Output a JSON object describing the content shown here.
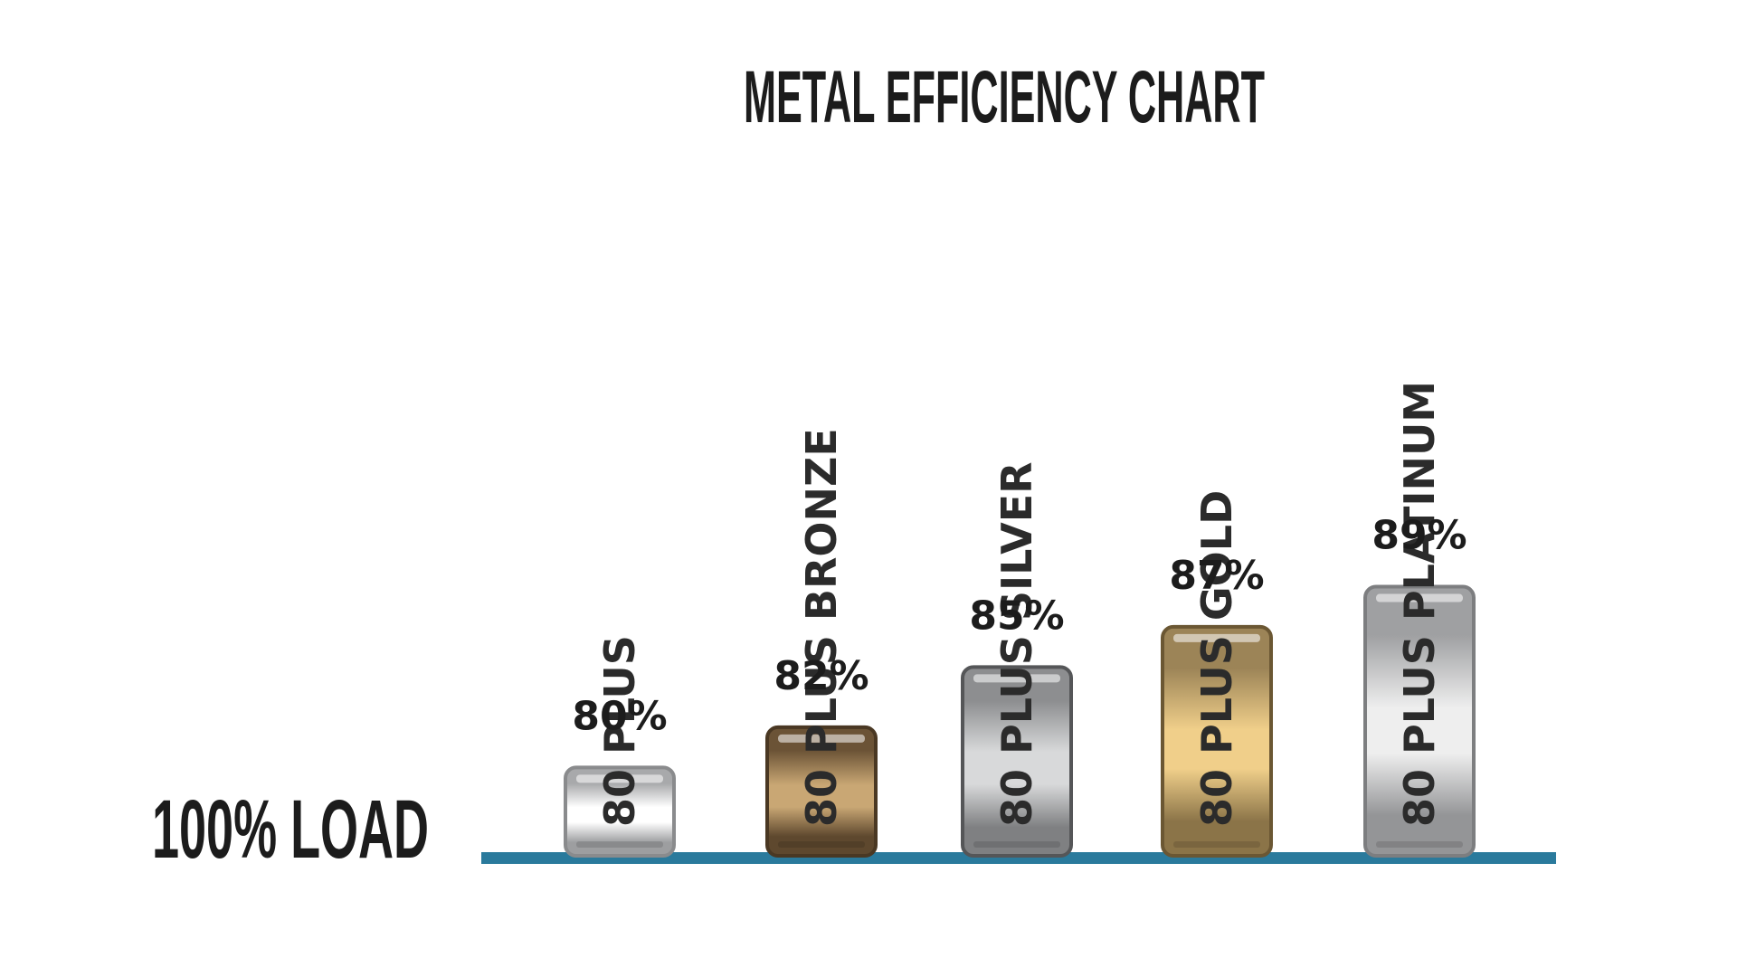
{
  "chart_data": {
    "type": "bar",
    "title": "METAL EFFICIENCY CHART",
    "axis_label": "100% LOAD",
    "categories": [
      "80 PLUS",
      "80 PLUS BRONZE",
      "80 PLUS SILVER",
      "80 PLUS GOLD",
      "80 PLUS PLATINUM"
    ],
    "values": [
      80,
      82,
      85,
      87,
      89
    ],
    "value_labels": [
      "80%",
      "82%",
      "85%",
      "87%",
      "89%"
    ],
    "unit": "%",
    "grid": false,
    "legend": "none",
    "colors": {
      "baseline": "#2a7a9c",
      "80 PLUS": {
        "edge": "#a8a9ab",
        "mid": "#ffffff",
        "dark": "#9d9ea0",
        "border": "#8a8b8d",
        "text": "#2b2b2b"
      },
      "80 PLUS BRONZE": {
        "edge": "#6b5336",
        "mid": "#c9a774",
        "dark": "#5e482e",
        "border": "#4a3823",
        "text": "#2b2b2b"
      },
      "80 PLUS SILVER": {
        "edge": "#8d8e90",
        "mid": "#d8d9da",
        "dark": "#7f8082",
        "border": "#555658",
        "text": "#2b2b2b"
      },
      "80 PLUS GOLD": {
        "edge": "#9c8457",
        "mid": "#f0cf8a",
        "dark": "#8b7448",
        "border": "#6b5733",
        "text": "#2b2b2b"
      },
      "80 PLUS PLATINUM": {
        "edge": "#9fa0a2",
        "mid": "#eeeeee",
        "dark": "#949597",
        "border": "#7d7e80",
        "text": "#2b2b2b"
      }
    }
  }
}
